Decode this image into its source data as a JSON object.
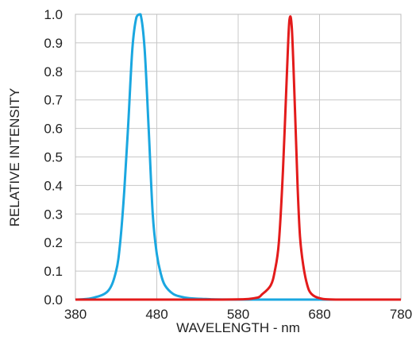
{
  "chart_data": {
    "type": "line",
    "xlabel": "WAVELENGTH - nm",
    "ylabel": "RELATIVE INTENSITY",
    "xlim": [
      380,
      780
    ],
    "ylim": [
      0,
      1.0
    ],
    "x_ticks": [
      380,
      480,
      580,
      680,
      780
    ],
    "x_tick_labels": [
      "380",
      "480",
      "580",
      "680",
      "780"
    ],
    "y_ticks": [
      0,
      0.1,
      0.2,
      0.3,
      0.4,
      0.5,
      0.6,
      0.7,
      0.8,
      0.9,
      1.0
    ],
    "y_tick_labels": [
      "0.0",
      "0.1",
      "0.2",
      "0.3",
      "0.4",
      "0.5",
      "0.6",
      "0.7",
      "0.8",
      "0.9",
      "1.0"
    ],
    "grid": true,
    "series": [
      {
        "color": "#1AA7E0",
        "x": [
          380,
          400,
          420,
          430,
          435,
          440,
          445,
          450,
          455,
          460,
          465,
          470,
          475,
          480,
          485,
          490,
          500,
          510,
          520,
          540,
          580,
          780
        ],
        "y": [
          0.0,
          0.005,
          0.03,
          0.1,
          0.2,
          0.38,
          0.62,
          0.88,
          0.99,
          1.0,
          0.88,
          0.6,
          0.3,
          0.16,
          0.09,
          0.05,
          0.02,
          0.01,
          0.005,
          0.002,
          0.0,
          0.0
        ]
      },
      {
        "color": "#E31B1B",
        "x": [
          380,
          560,
          600,
          610,
          620,
          625,
          630,
          635,
          640,
          643,
          646,
          650,
          653,
          656,
          660,
          665,
          670,
          680,
          700,
          780
        ],
        "y": [
          0.0,
          0.0,
          0.005,
          0.02,
          0.05,
          0.1,
          0.2,
          0.45,
          0.8,
          0.98,
          0.95,
          0.65,
          0.4,
          0.22,
          0.12,
          0.05,
          0.02,
          0.005,
          0.0,
          0.0
        ]
      }
    ]
  }
}
